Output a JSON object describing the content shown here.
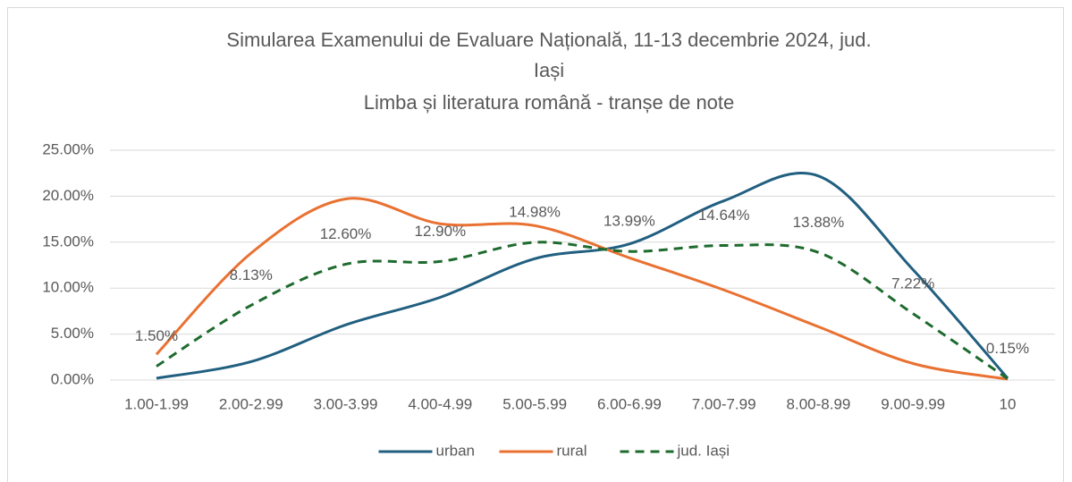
{
  "chart_data": {
    "type": "line",
    "title": [
      "Simularea Examenului de Evaluare Națională, 11-13 decembrie 2024, jud.",
      "Iași",
      "Limba și literatura română - tranșe de note"
    ],
    "categories": [
      "1.00-1.99",
      "2.00-2.99",
      "3.00-3.99",
      "4.00-4.99",
      "5.00-5.99",
      "6.00-6.99",
      "7.00-7.99",
      "8.00-8.99",
      "9.00-9.99",
      "10"
    ],
    "series": [
      {
        "name": "urban",
        "color": "#215f80",
        "dashed": false,
        "values": [
          0.2,
          2.0,
          6.0,
          9.0,
          13.2,
          14.8,
          19.5,
          22.2,
          12.0,
          0.2
        ]
      },
      {
        "name": "rural",
        "color": "#e97132",
        "dashed": false,
        "values": [
          2.8,
          13.8,
          19.7,
          17.0,
          16.8,
          13.3,
          9.8,
          5.8,
          1.8,
          0.1
        ]
      },
      {
        "name": "jud. Iași",
        "color": "#1e6b2e",
        "dashed": true,
        "values": [
          1.5,
          8.13,
          12.6,
          12.9,
          14.98,
          13.99,
          14.64,
          13.88,
          7.22,
          0.15
        ],
        "value_labels": [
          "1.50%",
          "8.13%",
          "12.60%",
          "12.90%",
          "14.98%",
          "13.99%",
          "14.64%",
          "13.88%",
          "7.22%",
          "0.15%"
        ]
      }
    ],
    "ylim": [
      0,
      25
    ],
    "yticks": [
      {
        "value": 0,
        "label": "0.00%"
      },
      {
        "value": 5,
        "label": "5.00%"
      },
      {
        "value": 10,
        "label": "10.00%"
      },
      {
        "value": 15,
        "label": "15.00%"
      },
      {
        "value": 20,
        "label": "20.00%"
      },
      {
        "value": 25,
        "label": "25.00%"
      }
    ],
    "grid": true,
    "legend": "bottom"
  }
}
